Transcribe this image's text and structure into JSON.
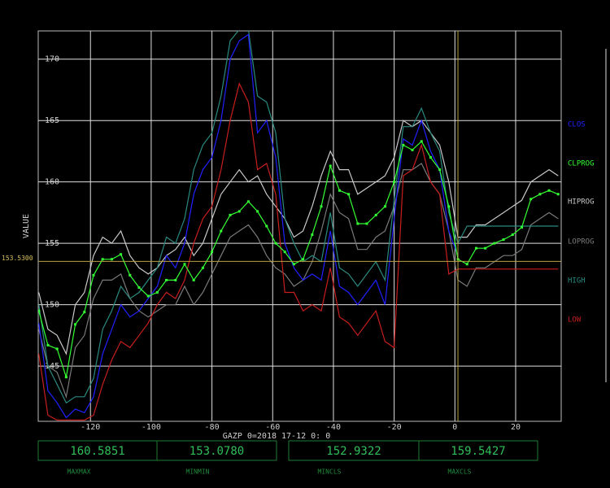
{
  "chart_data": {
    "type": "line",
    "ylabel": "VALUE",
    "xlabel": "GAZP    0=2018 17-12  0: 0",
    "xlim": [
      -137.2,
      35
    ],
    "ylim": [
      140.5,
      172.3
    ],
    "xticks": [
      -120,
      -100,
      -80,
      -60,
      -40,
      -20,
      0,
      20
    ],
    "yticks": [
      145,
      150,
      155,
      160,
      165,
      170
    ],
    "grid": true,
    "hline": {
      "value": 153.53,
      "label": "153.5300"
    },
    "vline": 1,
    "x": [
      -137,
      -134,
      -131,
      -128,
      -125,
      -122,
      -119,
      -116,
      -113,
      -110,
      -107,
      -104,
      -101,
      -98,
      -95,
      -92,
      -89,
      -86,
      -83,
      -80,
      -77,
      -74,
      -71,
      -68,
      -65,
      -62,
      -59,
      -56,
      -53,
      -50,
      -47,
      -44,
      -41,
      -38,
      -35,
      -32,
      -29,
      -26,
      -23,
      -20,
      -17,
      -14,
      -11,
      -8,
      -5,
      -2,
      1,
      4,
      7,
      10,
      13,
      16,
      19,
      22,
      25,
      28,
      31,
      34
    ],
    "series": [
      {
        "name": "HIPROG",
        "color": "#c8c8c8",
        "values": [
          151,
          148,
          147.5,
          146,
          150,
          151,
          154,
          155.5,
          155,
          156,
          154,
          153,
          152.5,
          153,
          154,
          154.5,
          155.5,
          154,
          155,
          157,
          159,
          160,
          161,
          160,
          160.5,
          159,
          158,
          157,
          155.5,
          156,
          158,
          160.5,
          162.5,
          161,
          161,
          159,
          159.5,
          160,
          160.5,
          162,
          165,
          164.5,
          165,
          164,
          163,
          160,
          155.5,
          155.5,
          156.5,
          156.5,
          157,
          157.5,
          158,
          158.5,
          160,
          160.5,
          161,
          160.5
        ]
      },
      {
        "name": "LOPROG",
        "color": "#7a7a7a",
        "values": [
          148,
          145,
          144.5,
          142.5,
          146.5,
          147.5,
          150.5,
          152,
          152,
          152.5,
          150.5,
          149.5,
          149,
          149.5,
          150,
          150,
          151.5,
          150,
          151,
          152.5,
          154,
          155.5,
          156,
          156.5,
          155.5,
          154,
          153,
          152.5,
          151.5,
          152,
          153.5,
          156,
          159,
          157.5,
          157,
          154.5,
          154.5,
          155.5,
          156,
          158,
          161,
          161,
          161.5,
          160,
          159,
          156,
          152,
          151.5,
          153,
          153,
          153.5,
          154,
          154,
          154.5,
          156.5,
          157,
          157.5,
          157
        ]
      },
      {
        "name": "HIGH",
        "color": "#2a8a80",
        "values": [
          150,
          145,
          143.5,
          142,
          142.5,
          142.5,
          144,
          148,
          149.5,
          151.5,
          150.5,
          151,
          152,
          153,
          155.5,
          155,
          157,
          161,
          163,
          164,
          167,
          171.5,
          172.4,
          172.4,
          167,
          166.5,
          164,
          157,
          155,
          153.5,
          154,
          153.5,
          157.5,
          153,
          152.5,
          151.5,
          152.5,
          153.5,
          152,
          158.5,
          164.5,
          164.5,
          166,
          164,
          162.5,
          157.5,
          155,
          156.4,
          156.4,
          156.4,
          156.4,
          156.4,
          156.4,
          156.4,
          156.4,
          156.4,
          156.4,
          156.4
        ]
      },
      {
        "name": "LOW",
        "color": "#c81e1e",
        "values": [
          146,
          141,
          140.6,
          140.6,
          140.6,
          140.6,
          141,
          143.5,
          145.5,
          147,
          146.5,
          147.5,
          148.5,
          150,
          151,
          150.5,
          152,
          155,
          157,
          158,
          161,
          165,
          168,
          166.5,
          161,
          161.5,
          159,
          151,
          151,
          149.5,
          150,
          149.5,
          153,
          149,
          148.5,
          147.5,
          148.5,
          149.5,
          147,
          146.5,
          160.5,
          161,
          163,
          160,
          159,
          152.5,
          152.9,
          152.9,
          152.9,
          152.9,
          152.9,
          152.9,
          152.9,
          152.9,
          152.9,
          152.9,
          152.9,
          152.9
        ]
      },
      {
        "name": "CLOS",
        "color": "#2020ff",
        "values": [
          148.5,
          143,
          142,
          140.8,
          141.5,
          141.2,
          142.5,
          146,
          148,
          150,
          149,
          149.5,
          150.5,
          151.5,
          154,
          153,
          155,
          159,
          161,
          162,
          165,
          170,
          171.5,
          172,
          164,
          165,
          162,
          155,
          153,
          152,
          152.5,
          152,
          156,
          151.5,
          151,
          150,
          151,
          152,
          150,
          157,
          163.5,
          163,
          165,
          162.5,
          161,
          156,
          154,
          null,
          null,
          null,
          null,
          null,
          null,
          null,
          null,
          null,
          null,
          null
        ]
      },
      {
        "name": "CLPROG",
        "color": "#33ff33",
        "markers": true,
        "values": [
          149.5,
          146.7,
          146.4,
          144.1,
          148.4,
          149.4,
          152.4,
          153.7,
          153.7,
          154.1,
          152.4,
          151.4,
          150.7,
          151,
          152,
          152,
          153.3,
          152,
          153,
          154.3,
          156,
          157.3,
          157.6,
          158.4,
          157.6,
          156.4,
          155,
          154.3,
          153.3,
          153.7,
          155.7,
          158,
          161.3,
          159.3,
          159,
          156.6,
          156.6,
          157.3,
          158,
          160,
          163,
          162.6,
          163.3,
          162,
          161,
          158,
          153.7,
          153.3,
          154.6,
          154.6,
          155,
          155.3,
          155.7,
          156.3,
          158.6,
          159,
          159.3,
          159
        ]
      }
    ],
    "legend_order": [
      4,
      5,
      0,
      1,
      2,
      3
    ],
    "stats": [
      {
        "value": "160.5851",
        "label": "MAXMAX"
      },
      {
        "value": "153.0780",
        "label": "MINMIN"
      },
      {
        "value": "152.9322",
        "label": "MINCLS"
      },
      {
        "value": "159.5427",
        "label": "MAXCLS"
      }
    ]
  }
}
